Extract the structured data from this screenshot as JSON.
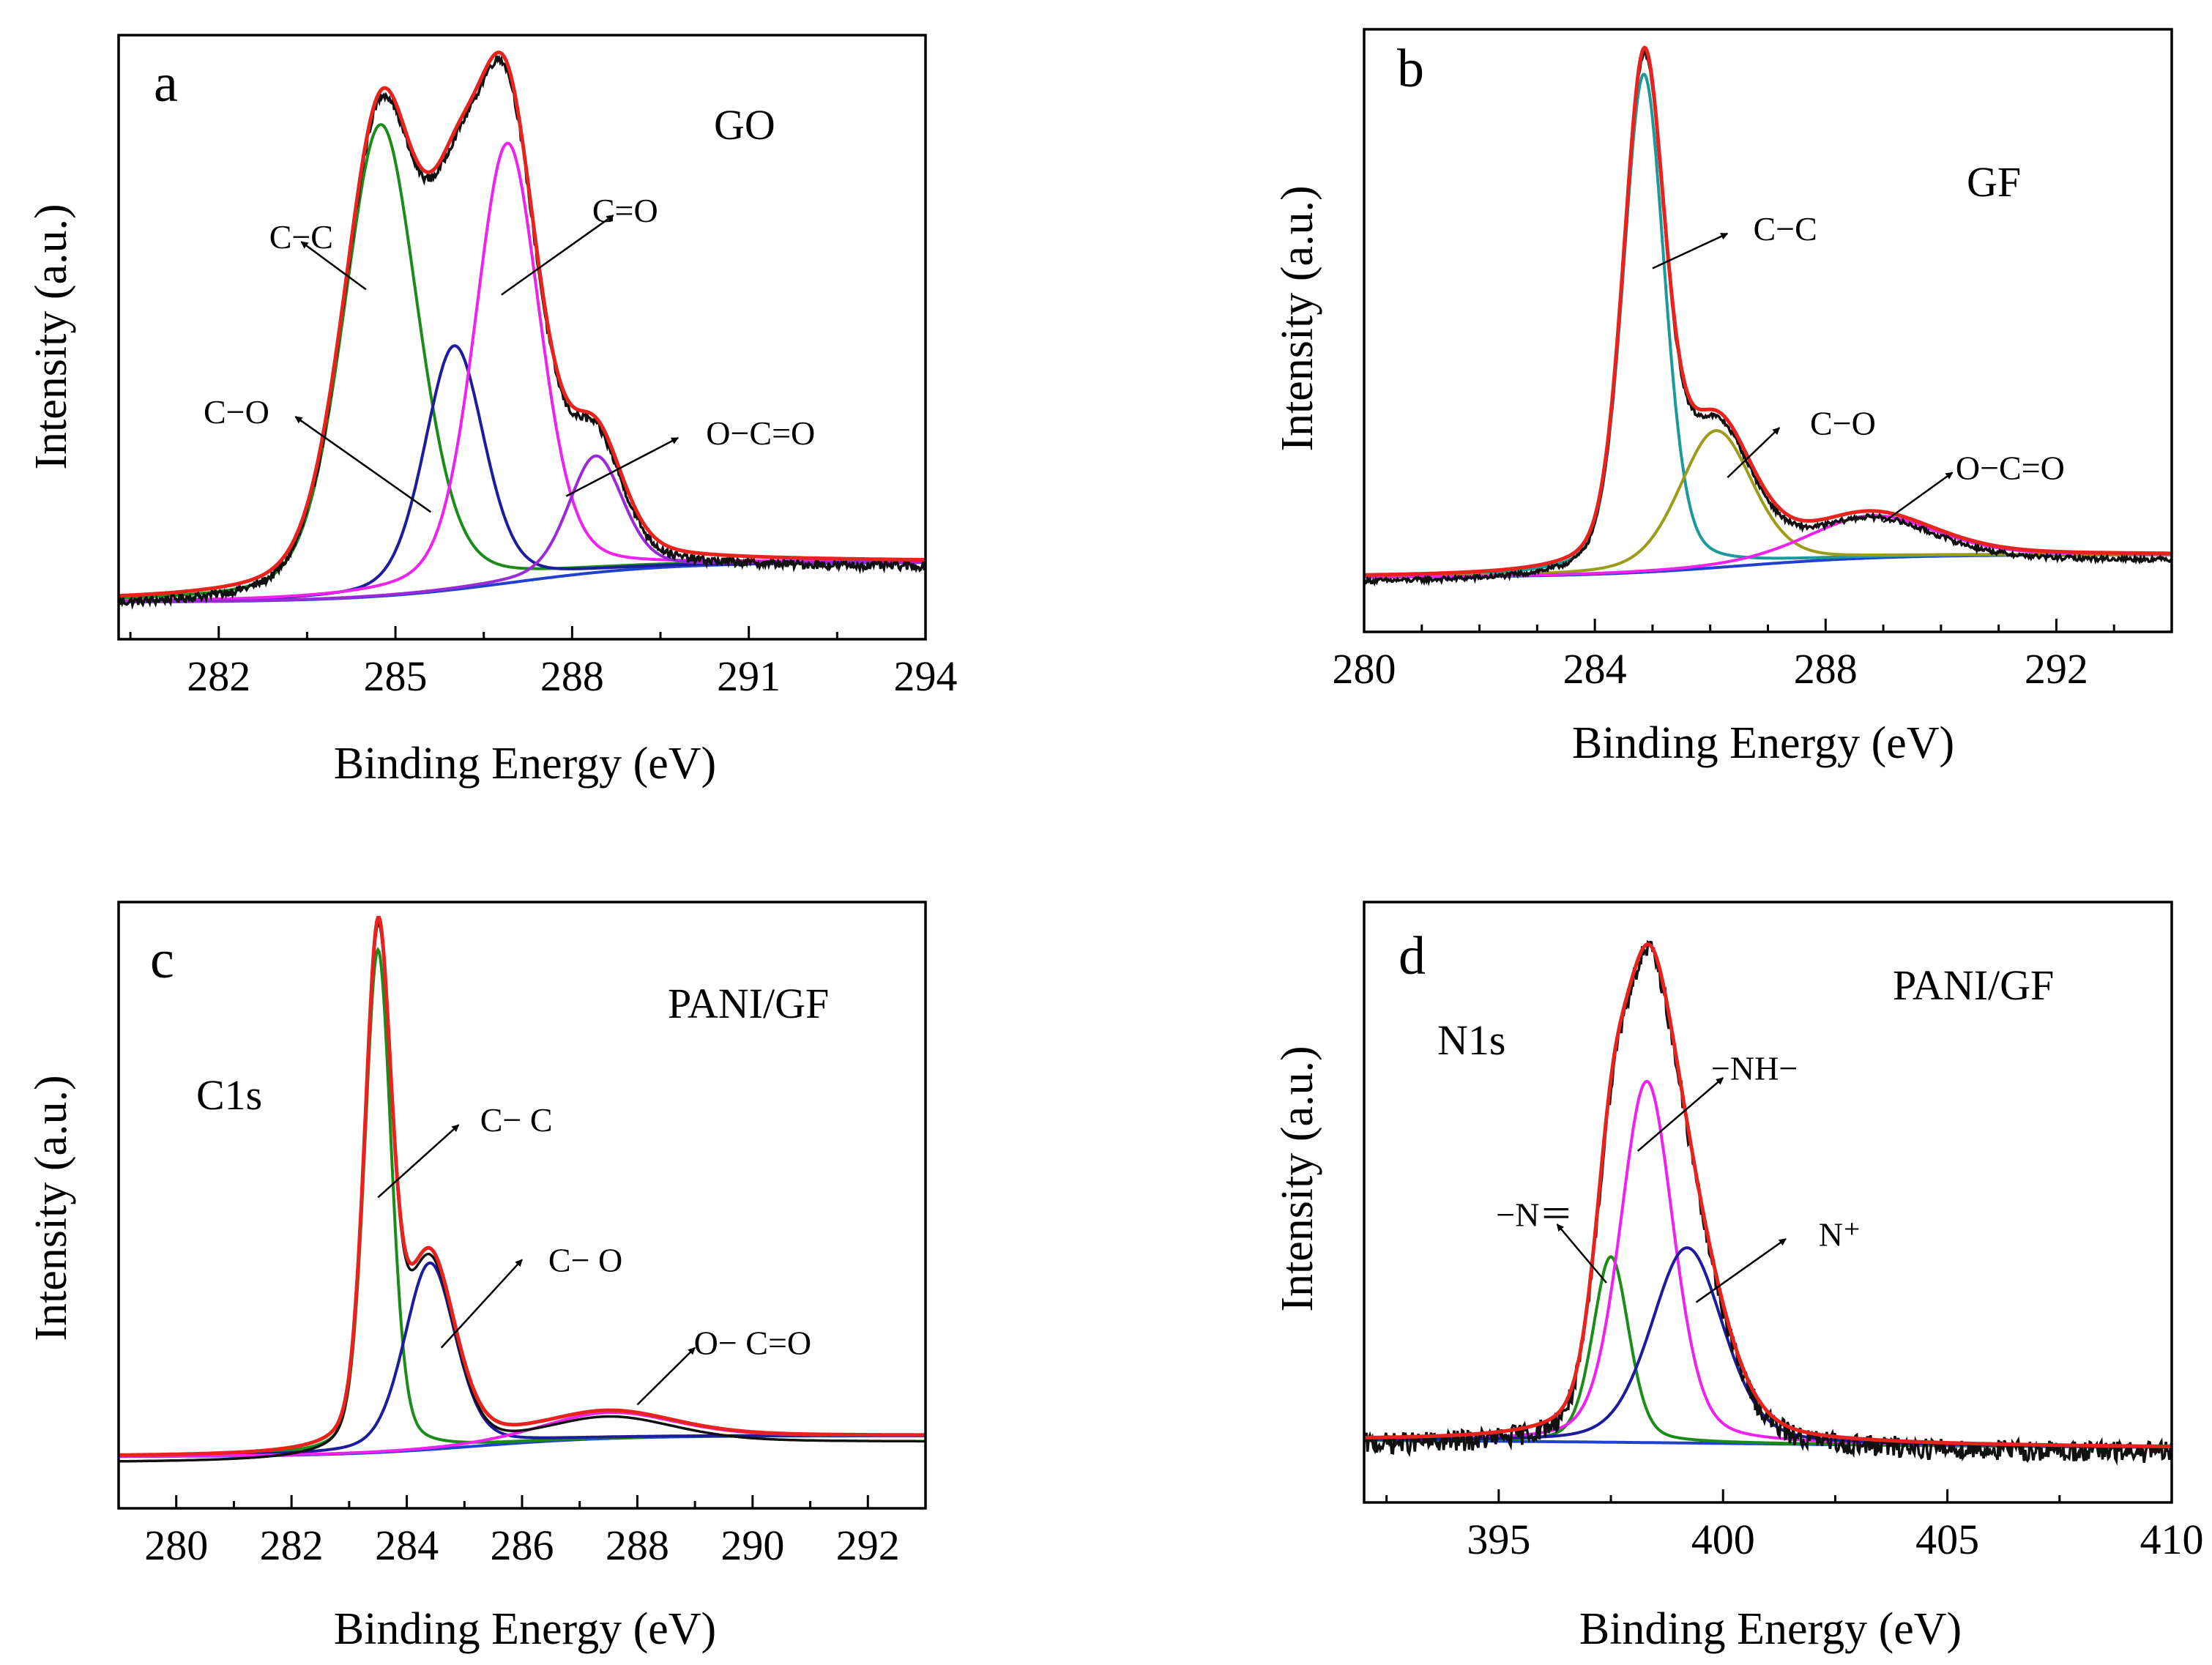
{
  "chart_data": [
    {
      "panel": "a",
      "type": "line",
      "sample_label": "GO",
      "xlabel": "Binding Energy (eV)",
      "ylabel": "Intensity (a.u.)",
      "xlim": [
        280.3,
        294
      ],
      "ylim": [
        -0.07,
        1.07
      ],
      "xticks": [
        282,
        285,
        288,
        291,
        294
      ],
      "xtick_labels": [
        "282",
        "285",
        "288",
        "291",
        "294"
      ],
      "xtick_minor": 1.5,
      "baseline": {
        "name": "Baseline",
        "color": "#2040d0",
        "start": 0.0,
        "end": 0.075,
        "center": 287,
        "width": 1.3
      },
      "peaks": [
        {
          "name": "C−C",
          "label": "C−C",
          "center": 284.75,
          "height": 0.89,
          "fwhm": 1.5,
          "color": "#1a8c1a"
        },
        {
          "name": "C−O",
          "label": "C−O",
          "center": 286.0,
          "height": 0.46,
          "fwhm": 1.2,
          "color": "#1c1c9c"
        },
        {
          "name": "C=O",
          "label": "C=O",
          "center": 286.9,
          "height": 0.83,
          "fwhm": 1.3,
          "color": "#ee22ee"
        },
        {
          "name": "O−C=O",
          "label": "O−C=O",
          "center": 288.4,
          "height": 0.22,
          "fwhm": 1.1,
          "color": "#9a2ad8"
        }
      ],
      "fit_color": "#e8231e",
      "experimental_color": "#111111",
      "noise": 0.008,
      "annotations": [
        {
          "text": "C−C",
          "x": 283.4,
          "y": 0.69,
          "tip_x": 283.4,
          "tip_y": 0.68,
          "tail_x": 284.5,
          "tail_y": 0.59
        },
        {
          "text": "C−O",
          "x": 282.3,
          "y": 0.36,
          "tip_x": 283.3,
          "tip_y": 0.35,
          "tail_x": 285.6,
          "tail_y": 0.17
        },
        {
          "text": "C=O",
          "x": 288.9,
          "y": 0.74,
          "tip_x": 288.7,
          "tip_y": 0.73,
          "tail_x": 286.8,
          "tail_y": 0.58
        },
        {
          "text": "O−C=O",
          "x": 291.2,
          "y": 0.32,
          "tip_x": 289.8,
          "tip_y": 0.31,
          "tail_x": 287.9,
          "tail_y": 0.2
        }
      ]
    },
    {
      "panel": "b",
      "type": "line",
      "sample_label": "GF",
      "xlabel": "Binding  Energy (eV)",
      "ylabel": "Intensity (a.u.)",
      "xlim": [
        280,
        294
      ],
      "ylim": [
        -0.11,
        1.1
      ],
      "xticks": [
        280,
        284,
        288,
        292
      ],
      "xtick_labels": [
        "280",
        "284",
        "288",
        "292"
      ],
      "xtick_minor": 1,
      "baseline": {
        "name": "Baseline",
        "color": "#2040d0",
        "start": 0.0,
        "end": 0.045,
        "center": 286.5,
        "width": 1.3
      },
      "peaks": [
        {
          "name": "C−C",
          "label": "C−C",
          "center": 284.85,
          "height": 1.0,
          "fwhm": 0.85,
          "color": "#1a9a9a"
        },
        {
          "name": "C−O",
          "label": "C−O",
          "center": 286.1,
          "height": 0.275,
          "fwhm": 1.5,
          "color": "#9c9c1a"
        },
        {
          "name": "O−C=O",
          "label": "O−C=O",
          "center": 288.8,
          "height": 0.085,
          "fwhm": 2.6,
          "color": "#ee22ee"
        }
      ],
      "fit_color": "#e8231e",
      "experimental_color": "#111111",
      "noise": 0.005,
      "annotations": [
        {
          "text": "C−C",
          "x": 287.3,
          "y": 0.7,
          "tip_x": 286.3,
          "tip_y": 0.69,
          "tail_x": 285.0,
          "tail_y": 0.62
        },
        {
          "text": "C−O",
          "x": 288.3,
          "y": 0.31,
          "tip_x": 287.2,
          "tip_y": 0.3,
          "tail_x": 286.3,
          "tail_y": 0.2
        },
        {
          "text": "O−C=O",
          "x": 291.2,
          "y": 0.22,
          "tip_x": 290.2,
          "tip_y": 0.21,
          "tail_x": 289.0,
          "tail_y": 0.11
        }
      ]
    },
    {
      "panel": "c",
      "type": "line",
      "sample_label": "PANI/GF",
      "core_level": "C1s",
      "xlabel": "Binding Energy (eV)",
      "ylabel": "Intensity (a.u.)",
      "xlim": [
        279,
        293
      ],
      "ylim": [
        -0.1,
        1.07
      ],
      "xticks": [
        280,
        282,
        284,
        286,
        288,
        290,
        292
      ],
      "xtick_labels": [
        "280",
        "282",
        "284",
        "286",
        "288",
        "290",
        "292"
      ],
      "xtick_minor": 1,
      "baseline": {
        "name": "Baseline",
        "color": "#2040d0",
        "start": 0.0,
        "end": 0.04,
        "center": 285.2,
        "width": 1.2
      },
      "peaks": [
        {
          "name": "C−C",
          "label": "C−C",
          "center": 283.5,
          "height": 0.97,
          "fwhm": 0.55,
          "color": "#1a8c1a"
        },
        {
          "name": "C−O",
          "label": "C−O",
          "center": 284.4,
          "height": 0.36,
          "fwhm": 1.05,
          "color": "#1c1c9c"
        },
        {
          "name": "O−C=O",
          "label": "O−C=O",
          "center": 287.5,
          "height": 0.05,
          "fwhm": 2.7,
          "color": "#ee22ee"
        }
      ],
      "fit_color": "#e8231e",
      "experimental_color": "#111111",
      "noise": 0.0,
      "annotations": [
        {
          "text": "C− C",
          "x": 285.9,
          "y": 0.65,
          "tip_x": 284.9,
          "tip_y": 0.64,
          "tail_x": 283.5,
          "tail_y": 0.5
        },
        {
          "text": "C− O",
          "x": 287.1,
          "y": 0.38,
          "tip_x": 286.0,
          "tip_y": 0.38,
          "tail_x": 284.6,
          "tail_y": 0.21
        },
        {
          "text": "O− C=O",
          "x": 290.0,
          "y": 0.22,
          "tip_x": 289.0,
          "tip_y": 0.21,
          "tail_x": 288.0,
          "tail_y": 0.1
        }
      ]
    },
    {
      "panel": "d",
      "type": "line",
      "sample_label": "PANI/GF",
      "core_level": "N1s",
      "xlabel": "Binding Energy (eV)",
      "ylabel": "Intensity (a.u.)",
      "xlim": [
        392,
        410
      ],
      "ylim": [
        -0.13,
        1.1
      ],
      "xticks": [
        395,
        400,
        405,
        410
      ],
      "xtick_labels": [
        "395",
        "400",
        "405",
        "410"
      ],
      "xtick_minor": 2.5,
      "baseline": {
        "name": "Baseline",
        "color": "#2040d0",
        "start": 0.0,
        "end": -0.02,
        "center": 401,
        "width": 5
      },
      "peaks": [
        {
          "name": "−N=",
          "label": "−N=",
          "center": 397.5,
          "height": 0.38,
          "fwhm": 0.95,
          "color": "#1a8c1a"
        },
        {
          "name": "−NH−",
          "label": "−NH−",
          "center": 398.3,
          "height": 0.74,
          "fwhm": 1.4,
          "color": "#ee22ee"
        },
        {
          "name": "N+",
          "label": "N⁺",
          "center": 399.2,
          "height": 0.4,
          "fwhm": 1.9,
          "color": "#1c1c9c"
        }
      ],
      "fit_color": "#e8231e",
      "experimental_color": "#111111",
      "noise": 0.022,
      "annotations": [
        {
          "text": "−N＝",
          "x": 395.8,
          "y": 0.46,
          "tip_x": 396.3,
          "tip_y": 0.44,
          "tail_x": 397.4,
          "tail_y": 0.32
        },
        {
          "text": "−NH−",
          "x": 400.7,
          "y": 0.76,
          "tip_x": 400.0,
          "tip_y": 0.74,
          "tail_x": 398.1,
          "tail_y": 0.59
        },
        {
          "text": "N⁺",
          "x": 402.6,
          "y": 0.42,
          "tip_x": 401.4,
          "tip_y": 0.41,
          "tail_x": 399.4,
          "tail_y": 0.28
        }
      ]
    }
  ]
}
